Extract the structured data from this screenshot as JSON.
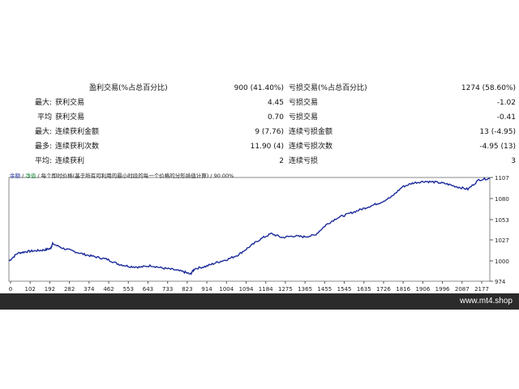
{
  "stats": {
    "rows": [
      {
        "label": "",
        "name1": "盈利交易(%占总百分比)",
        "value1": "900 (41.40%)",
        "name2": "亏损交易(%占总百分比)",
        "value2": "1274 (58.60%)"
      },
      {
        "label": "最大:",
        "name1": "获利交易",
        "value1": "4.45",
        "name2": "亏损交易",
        "value2": "-1.02"
      },
      {
        "label": "平均",
        "name1": "获利交易",
        "value1": "0.70",
        "name2": "亏损交易",
        "value2": "-0.41"
      },
      {
        "label": "最大:",
        "name1": "连续获利金额",
        "value1": "9 (7.76)",
        "name2": "连续亏损金额",
        "value2": "13 (-4.95)"
      },
      {
        "label": "最多:",
        "name1": "连续获利次数",
        "value1": "11.90 (4)",
        "name2": "连续亏损次数",
        "value2": "-4.95 (13)"
      },
      {
        "label": "平均:",
        "name1": "连续获利",
        "value1": "2",
        "name2": "连续亏损",
        "value2": "3"
      }
    ]
  },
  "chart_legend": {
    "part1": "余额",
    "sep1": " / ",
    "part2": "净值",
    "sep2": " / ",
    "part3": "每个即时价格(基于所有可利用的最小时段的每一个价格的分形插值计算)",
    "sep3": " / ",
    "part4": "90.00%"
  },
  "chart_data": {
    "type": "line",
    "x_ticks": [
      "0",
      "102",
      "192",
      "282",
      "374",
      "462",
      "553",
      "643",
      "733",
      "823",
      "914",
      "1004",
      "1094",
      "1184",
      "1275",
      "1365",
      "1455",
      "1545",
      "1635",
      "1726",
      "1816",
      "1906",
      "1996",
      "2087",
      "2177"
    ],
    "y_ticks": [
      "1107",
      "1080",
      "1053",
      "1027",
      "1000",
      "974"
    ],
    "ylim": [
      974,
      1107
    ],
    "xlim": [
      0,
      2200
    ],
    "series": [
      {
        "color": "#1a2a9a",
        "x": [
          0,
          40,
          80,
          120,
          160,
          190,
          200,
          250,
          300,
          350,
          400,
          450,
          500,
          550,
          600,
          650,
          700,
          750,
          800,
          830,
          850,
          900,
          950,
          1000,
          1050,
          1100,
          1150,
          1200,
          1250,
          1300,
          1350,
          1400,
          1450,
          1500,
          1550,
          1600,
          1650,
          1700,
          1750,
          1800,
          1850,
          1900,
          1950,
          2000,
          2050,
          2100,
          2150,
          2200
        ],
        "y": [
          1000,
          1010,
          1012,
          1013,
          1014,
          1016,
          1022,
          1016,
          1012,
          1008,
          1005,
          1002,
          996,
          993,
          992,
          994,
          991,
          989,
          986,
          983,
          990,
          993,
          998,
          1002,
          1008,
          1018,
          1028,
          1035,
          1030,
          1032,
          1031,
          1033,
          1046,
          1055,
          1060,
          1065,
          1070,
          1075,
          1082,
          1095,
          1100,
          1102,
          1101,
          1099,
          1095,
          1092,
          1104,
          1106
        ]
      }
    ]
  },
  "footer": {
    "brand": "www.mt4.shop"
  }
}
